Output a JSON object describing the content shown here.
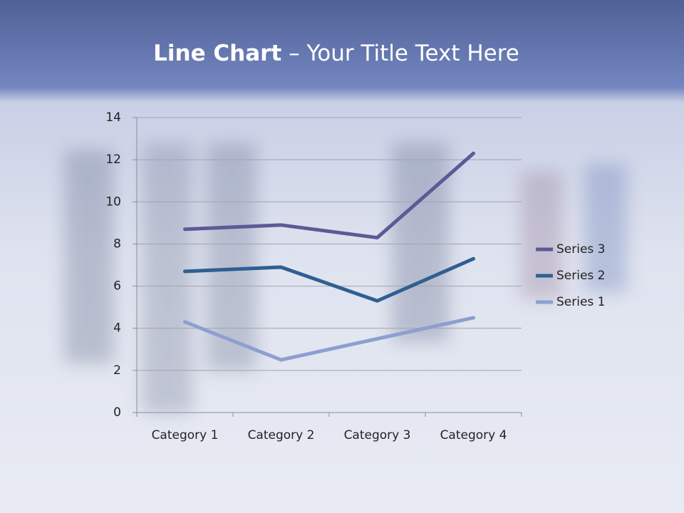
{
  "chart_data": {
    "type": "line",
    "title": [
      "Line Chart",
      "– Your Title Text Here"
    ],
    "categories": [
      "Category 1",
      "Category 2",
      "Category 3",
      "Category 4"
    ],
    "series": [
      {
        "name": "Series 1",
        "color": "#8d9fd1",
        "values": [
          4.3,
          2.5,
          3.5,
          4.5
        ]
      },
      {
        "name": "Series 2",
        "color": "#2f5f92",
        "values": [
          6.7,
          6.9,
          5.3,
          7.3
        ]
      },
      {
        "name": "Series 3",
        "color": "#5e5996",
        "values": [
          8.7,
          8.9,
          8.3,
          12.3
        ]
      }
    ],
    "ylim": [
      0,
      14
    ],
    "yticks": [
      0,
      2,
      4,
      6,
      8,
      10,
      12,
      14
    ],
    "grid": true,
    "legend": "right"
  }
}
